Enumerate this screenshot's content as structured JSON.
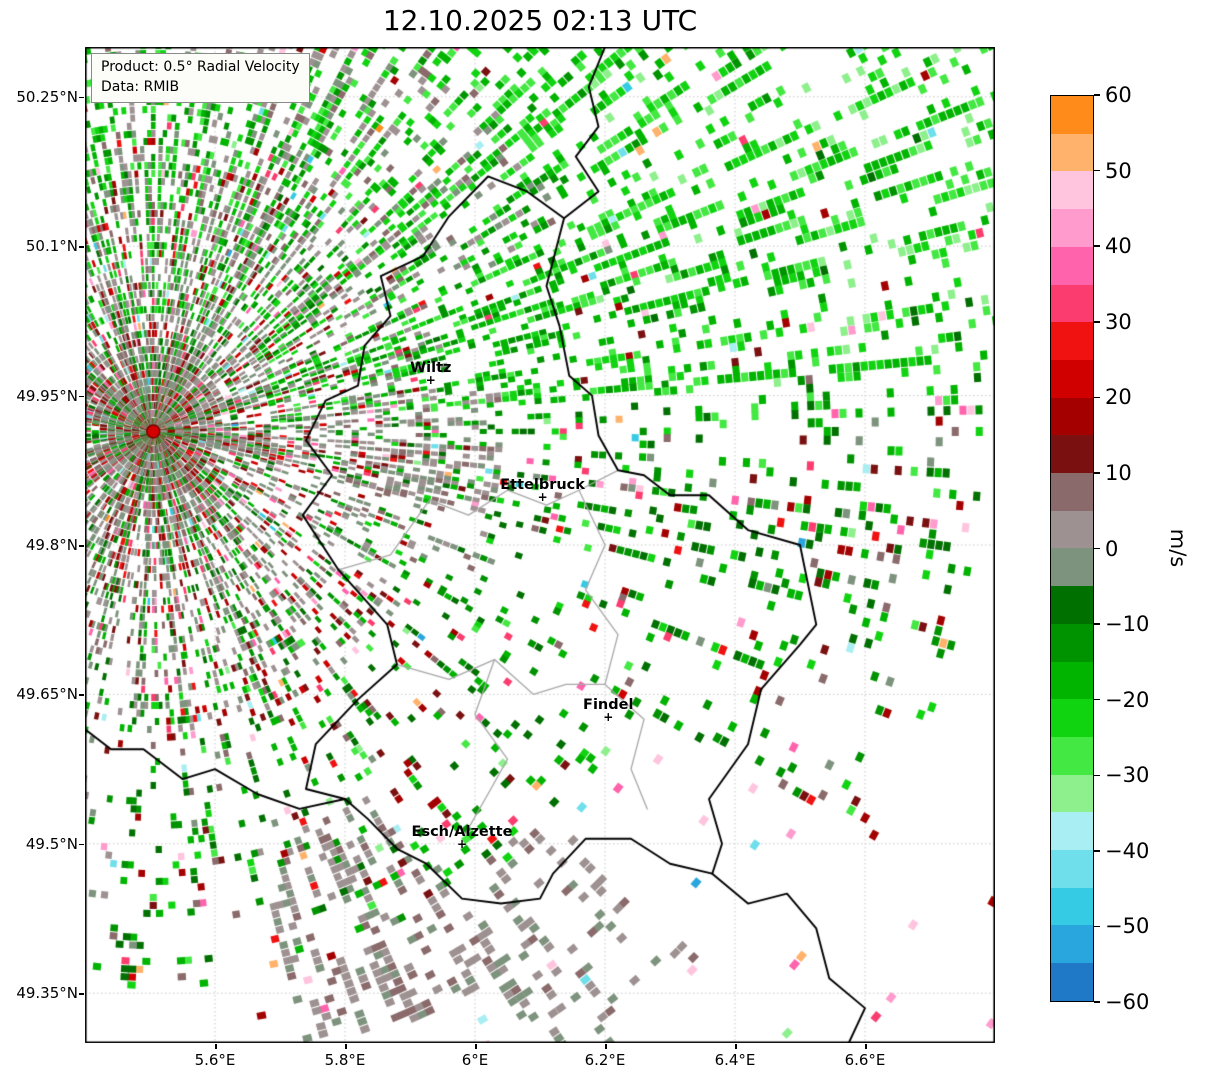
{
  "title": "12.10.2025 02:13 UTC",
  "info_box": {
    "product": "Product: 0.5° Radial Velocity",
    "source": "Data: RMIB"
  },
  "axes": {
    "lon_min": 5.4,
    "lon_max": 6.8,
    "lat_min": 49.3,
    "lat_max": 50.3,
    "x_ticks": [
      {
        "value": 5.6,
        "label": "5.6°E"
      },
      {
        "value": 5.8,
        "label": "5.8°E"
      },
      {
        "value": 6.0,
        "label": "6°E"
      },
      {
        "value": 6.2,
        "label": "6.2°E"
      },
      {
        "value": 6.4,
        "label": "6.4°E"
      },
      {
        "value": 6.6,
        "label": "6.6°E"
      }
    ],
    "y_ticks": [
      {
        "value": 50.25,
        "label": "50.25°N"
      },
      {
        "value": 50.1,
        "label": "50.1°N"
      },
      {
        "value": 49.95,
        "label": "49.95°N"
      },
      {
        "value": 49.8,
        "label": "49.8°N"
      },
      {
        "value": 49.65,
        "label": "49.65°N"
      },
      {
        "value": 49.5,
        "label": "49.5°N"
      },
      {
        "value": 49.35,
        "label": "49.35°N"
      }
    ],
    "grid_color": "#c9c9c9"
  },
  "colorbar": {
    "label": "m/s",
    "ticks": [
      {
        "value": 60,
        "label": "60"
      },
      {
        "value": 50,
        "label": "50"
      },
      {
        "value": 40,
        "label": "40"
      },
      {
        "value": 30,
        "label": "30"
      },
      {
        "value": 20,
        "label": "20"
      },
      {
        "value": 10,
        "label": "10"
      },
      {
        "value": 0,
        "label": "0"
      },
      {
        "value": -10,
        "label": "−10"
      },
      {
        "value": -20,
        "label": "−20"
      },
      {
        "value": -30,
        "label": "−30"
      },
      {
        "value": -40,
        "label": "−40"
      },
      {
        "value": -50,
        "label": "−50"
      },
      {
        "value": -60,
        "label": "−60"
      }
    ],
    "vmin": -60,
    "vmax": 60,
    "segments": [
      {
        "v": -60,
        "color": "#2079c7"
      },
      {
        "v": -55,
        "color": "#2aa6de"
      },
      {
        "v": -50,
        "color": "#35cbe4"
      },
      {
        "v": -45,
        "color": "#6fdfec"
      },
      {
        "v": -40,
        "color": "#a8eef2"
      },
      {
        "v": -35,
        "color": "#8df08c"
      },
      {
        "v": -30,
        "color": "#44e842"
      },
      {
        "v": -25,
        "color": "#11d411"
      },
      {
        "v": -20,
        "color": "#00b400"
      },
      {
        "v": -15,
        "color": "#009300"
      },
      {
        "v": -10,
        "color": "#007000"
      },
      {
        "v": -5,
        "color": "#7d937d"
      },
      {
        "v": 0,
        "color": "#9e9191"
      },
      {
        "v": 5,
        "color": "#8a6a6a"
      },
      {
        "v": 10,
        "color": "#7a1010"
      },
      {
        "v": 15,
        "color": "#a40000"
      },
      {
        "v": 20,
        "color": "#d00000"
      },
      {
        "v": 25,
        "color": "#f01111"
      },
      {
        "v": 30,
        "color": "#fb3c6e"
      },
      {
        "v": 35,
        "color": "#ff63ac"
      },
      {
        "v": 40,
        "color": "#ff9bcd"
      },
      {
        "v": 45,
        "color": "#ffc4de"
      },
      {
        "v": 50,
        "color": "#ffb26b"
      },
      {
        "v": 55,
        "color": "#ff8c1a"
      }
    ]
  },
  "cities": [
    {
      "name": "Wiltz",
      "lon": 5.932,
      "lat": 49.966
    },
    {
      "name": "Ettelbruck",
      "lon": 6.104,
      "lat": 49.848
    },
    {
      "name": "Findel",
      "lon": 6.205,
      "lat": 49.627
    },
    {
      "name": "Esch/Alzette",
      "lon": 5.98,
      "lat": 49.5
    }
  ],
  "radar": {
    "name": "radar-site",
    "lon": 5.505,
    "lat": 49.914,
    "dot_color": "#d40000",
    "dot_edge": "#7a0000"
  },
  "borders": {
    "country_color": "#000000",
    "district_color": "#a8a8a8",
    "country": [
      [
        [
          5.8,
          49.545
        ],
        [
          5.74,
          49.555
        ],
        [
          5.755,
          49.6
        ],
        [
          5.82,
          49.645
        ],
        [
          5.88,
          49.68
        ],
        [
          5.865,
          49.72
        ],
        [
          5.79,
          49.775
        ],
        [
          5.735,
          49.83
        ],
        [
          5.78,
          49.87
        ],
        [
          5.74,
          49.905
        ],
        [
          5.77,
          49.945
        ],
        [
          5.82,
          49.96
        ],
        [
          5.83,
          50.0
        ],
        [
          5.87,
          50.03
        ],
        [
          5.855,
          50.07
        ],
        [
          5.92,
          50.09
        ],
        [
          5.96,
          50.13
        ],
        [
          6.02,
          50.17
        ],
        [
          6.08,
          50.155
        ],
        [
          6.137,
          50.128
        ],
        [
          6.11,
          50.06
        ],
        [
          6.13,
          50.02
        ],
        [
          6.145,
          49.97
        ],
        [
          6.18,
          49.95
        ],
        [
          6.19,
          49.91
        ],
        [
          6.22,
          49.875
        ],
        [
          6.26,
          49.87
        ],
        [
          6.3,
          49.85
        ],
        [
          6.36,
          49.85
        ],
        [
          6.42,
          49.815
        ],
        [
          6.5,
          49.8
        ],
        [
          6.525,
          49.72
        ],
        [
          6.5,
          49.7
        ],
        [
          6.44,
          49.655
        ],
        [
          6.42,
          49.6
        ],
        [
          6.36,
          49.545
        ],
        [
          6.38,
          49.5
        ],
        [
          6.365,
          49.47
        ],
        [
          6.3,
          49.48
        ],
        [
          6.24,
          49.505
        ],
        [
          6.17,
          49.505
        ],
        [
          6.12,
          49.47
        ],
        [
          6.1,
          49.445
        ],
        [
          6.04,
          49.44
        ],
        [
          5.98,
          49.445
        ],
        [
          5.925,
          49.48
        ],
        [
          5.88,
          49.495
        ],
        [
          5.835,
          49.525
        ],
        [
          5.8,
          49.545
        ]
      ],
      [
        [
          6.137,
          50.128
        ],
        [
          6.19,
          50.155
        ],
        [
          6.155,
          50.19
        ],
        [
          6.19,
          50.22
        ],
        [
          6.175,
          50.26
        ],
        [
          6.2,
          50.3
        ]
      ],
      [
        [
          5.8,
          49.545
        ],
        [
          5.73,
          49.535
        ],
        [
          5.665,
          49.55
        ],
        [
          5.6,
          49.575
        ],
        [
          5.55,
          49.565
        ],
        [
          5.49,
          49.595
        ],
        [
          5.44,
          49.595
        ],
        [
          5.4,
          49.615
        ]
      ],
      [
        [
          6.365,
          49.47
        ],
        [
          6.42,
          49.44
        ],
        [
          6.48,
          49.45
        ],
        [
          6.525,
          49.415
        ],
        [
          6.545,
          49.365
        ],
        [
          6.6,
          49.335
        ],
        [
          6.575,
          49.3
        ]
      ]
    ],
    "districts": [
      [
        [
          5.79,
          49.775
        ],
        [
          5.87,
          49.79
        ],
        [
          5.93,
          49.845
        ],
        [
          5.99,
          49.83
        ],
        [
          6.05,
          49.855
        ],
        [
          6.11,
          49.84
        ],
        [
          6.16,
          49.855
        ],
        [
          6.22,
          49.875
        ]
      ],
      [
        [
          6.16,
          49.855
        ],
        [
          6.2,
          49.8
        ],
        [
          6.17,
          49.755
        ],
        [
          6.22,
          49.71
        ],
        [
          6.2,
          49.66
        ],
        [
          6.26,
          49.625
        ],
        [
          6.24,
          49.575
        ],
        [
          6.265,
          49.535
        ]
      ],
      [
        [
          5.88,
          49.68
        ],
        [
          5.96,
          49.665
        ],
        [
          6.03,
          49.685
        ],
        [
          6.09,
          49.65
        ],
        [
          6.14,
          49.66
        ],
        [
          6.2,
          49.66
        ]
      ],
      [
        [
          6.03,
          49.685
        ],
        [
          6.0,
          49.63
        ],
        [
          6.05,
          49.585
        ],
        [
          6.02,
          49.55
        ],
        [
          5.985,
          49.51
        ]
      ]
    ]
  },
  "field": {
    "seed": 20251012,
    "angle_step": 0.75,
    "radial_step": 8,
    "regions": [
      {
        "name": "near-clutter",
        "r": [
          8,
          300
        ],
        "ang": [
          0,
          360
        ],
        "density": 0.55,
        "falloff": 170,
        "vel": "clutter"
      },
      {
        "name": "nne-gray-fingers",
        "r": [
          180,
          470
        ],
        "ang": [
          262,
          334
        ],
        "density": 0.2,
        "streaky": true,
        "vel": "near-zero"
      },
      {
        "name": "east-gray-patch",
        "r": [
          190,
          350
        ],
        "ang": [
          350,
          25
        ],
        "density": 0.28,
        "streaky": true,
        "vel": "near-zero"
      },
      {
        "name": "north-swath",
        "r": [
          120,
          1500
        ],
        "ang": [
          236,
          356
        ],
        "density": 0.55,
        "streaky": true,
        "vel": "green-strong"
      },
      {
        "name": "ssw-gray-cluster",
        "r": [
          420,
          650
        ],
        "ang": [
          58,
          76
        ],
        "density": 0.34,
        "streaky": true,
        "vel": "near-zero"
      },
      {
        "name": "sse-gray-cluster",
        "r": [
          540,
          770
        ],
        "ang": [
          44,
          58
        ],
        "density": 0.24,
        "streaky": true,
        "vel": "near-zero"
      },
      {
        "name": "east-mid-north",
        "r": [
          200,
          830
        ],
        "ang": [
          336,
          30
        ],
        "density": 0.22,
        "streaky": true,
        "vel": "green-mixed"
      },
      {
        "name": "east-mid-south",
        "r": [
          200,
          560
        ],
        "ang": [
          30,
          96
        ],
        "density": 0.18,
        "streaky": true,
        "vel": "green-mixed"
      },
      {
        "name": "south-sparse",
        "r": [
          260,
          660
        ],
        "ang": [
          96,
          236
        ],
        "density": 0.08,
        "vel": "mixed-weak"
      },
      {
        "name": "far-outliers",
        "r": [
          60,
          1500
        ],
        "ang": [
          0,
          360
        ],
        "density": 0.015,
        "vel": "outlier"
      }
    ]
  }
}
